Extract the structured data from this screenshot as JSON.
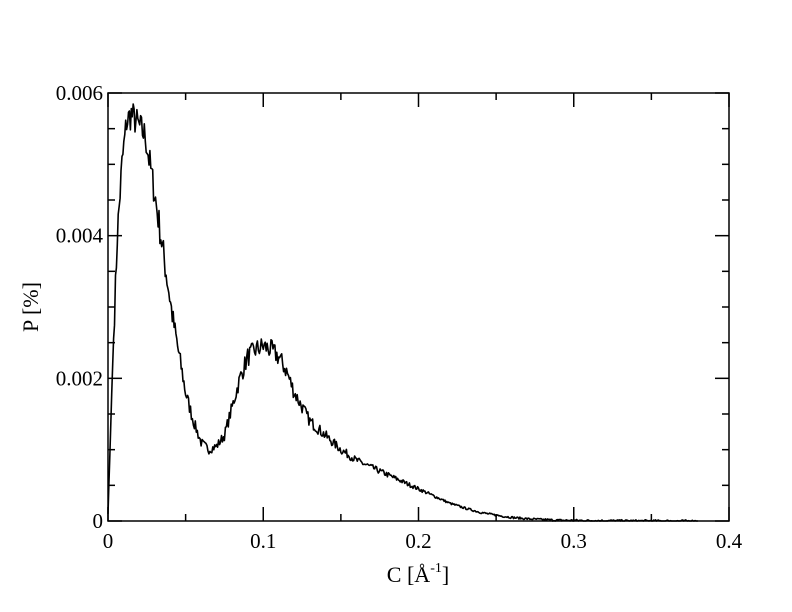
{
  "chart_data": {
    "type": "line",
    "title": "",
    "xlabel": {
      "text": "C [Å",
      "superscript": "-1",
      "close": "]"
    },
    "ylabel": "P [%]",
    "xlim": [
      0,
      0.4
    ],
    "ylim": [
      0,
      0.006
    ],
    "x_ticks": [
      0,
      0.1,
      0.2,
      0.3,
      0.4
    ],
    "x_tick_labels": [
      "0",
      "0.1",
      "0.2",
      "0.3",
      "0.4"
    ],
    "y_ticks": [
      0,
      0.002,
      0.004,
      0.006
    ],
    "y_tick_labels": [
      "0",
      "0.002",
      "0.004",
      "0.006"
    ],
    "grid": false,
    "legend": "none",
    "line_color": "#000000",
    "series": [
      {
        "x": [
          0,
          0.003,
          0.006,
          0.009,
          0.012,
          0.015,
          0.018,
          0.021,
          0.024,
          0.027,
          0.03,
          0.034,
          0.038,
          0.042,
          0.046,
          0.05,
          0.055,
          0.06,
          0.065,
          0.07,
          0.075,
          0.08,
          0.085,
          0.09,
          0.095,
          0.1,
          0.105,
          0.11,
          0.115,
          0.12,
          0.125,
          0.13,
          0.14,
          0.15,
          0.16,
          0.17,
          0.18,
          0.19,
          0.2,
          0.21,
          0.22,
          0.23,
          0.24,
          0.25,
          0.26,
          0.27,
          0.28,
          0.29,
          0.3,
          0.32,
          0.34,
          0.36,
          0.38
        ],
        "y": [
          0.0001,
          0.0022,
          0.004,
          0.005,
          0.0056,
          0.0057,
          0.0056,
          0.0055,
          0.0054,
          0.005,
          0.0046,
          0.004,
          0.0034,
          0.0028,
          0.0023,
          0.0018,
          0.0014,
          0.0011,
          0.001,
          0.00105,
          0.0012,
          0.0016,
          0.002,
          0.0023,
          0.0024,
          0.00245,
          0.0024,
          0.0023,
          0.0021,
          0.0018,
          0.0016,
          0.0014,
          0.0012,
          0.001,
          0.00085,
          0.00075,
          0.00065,
          0.00055,
          0.00045,
          0.00035,
          0.00025,
          0.00018,
          0.00012,
          8e-05,
          5e-05,
          3e-05,
          2e-05,
          1e-05,
          8e-06,
          4e-06,
          2e-06,
          1e-06,
          0.0
        ]
      }
    ]
  }
}
